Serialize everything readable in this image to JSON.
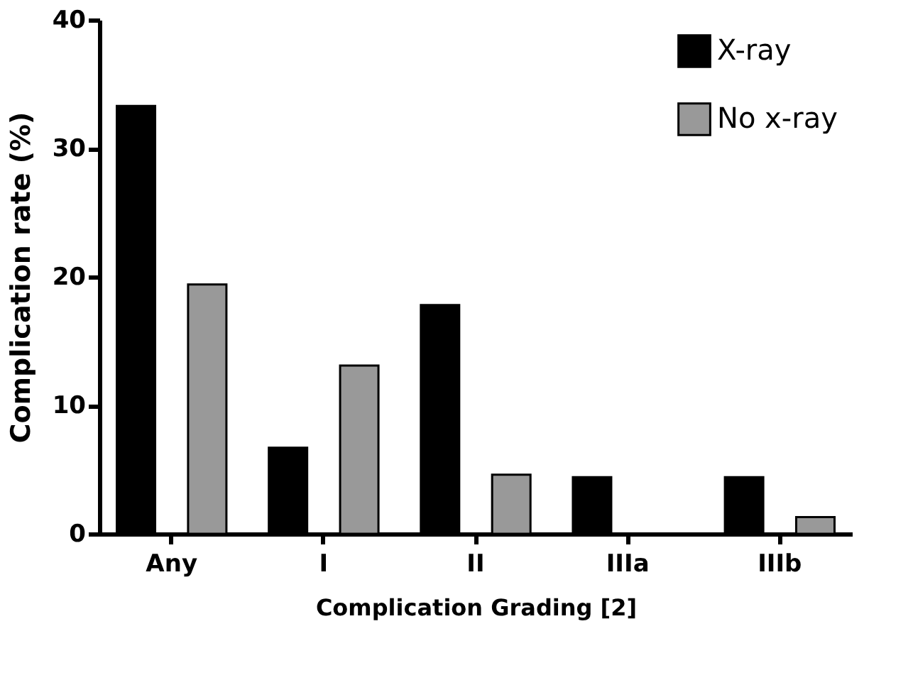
{
  "chart_data": {
    "type": "bar",
    "xlabel": "Complication Grading [2]",
    "ylabel": "Complication rate (%)",
    "categories": [
      "Any",
      "I",
      "II",
      "IIIa",
      "IIIb"
    ],
    "series": [
      {
        "name": "X-ray",
        "color": "#000000",
        "values": [
          33.3,
          6.7,
          17.8,
          4.4,
          4.4
        ]
      },
      {
        "name": "No x-ray",
        "color": "#999999",
        "values": [
          19.4,
          13.1,
          4.6,
          null,
          1.3
        ]
      }
    ],
    "ylim": [
      0,
      40
    ],
    "yticks": [
      0,
      10,
      20,
      30,
      40
    ],
    "grid": false,
    "legend": "top right"
  }
}
